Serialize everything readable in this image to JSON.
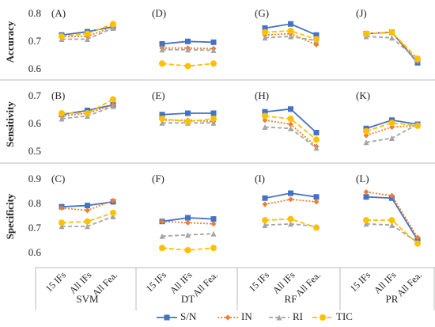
{
  "chart_data": [
    {
      "type": "line",
      "title": "(A)",
      "ylabel": "Accuracy",
      "ylim": [
        0.6,
        0.8
      ],
      "yticks": [
        0.6,
        0.7,
        0.8
      ],
      "series": [
        {
          "name": "S/N",
          "color": "#4472c4",
          "values": [
            0.725,
            0.737,
            0.755
          ]
        },
        {
          "name": "IN",
          "color": "#ed7d31",
          "values": [
            0.72,
            0.72,
            0.755
          ]
        },
        {
          "name": "RI",
          "color": "#a5a5a5",
          "values": [
            0.71,
            0.71,
            0.75
          ]
        },
        {
          "name": "TIC",
          "color": "#ffc000",
          "values": [
            0.72,
            0.73,
            0.765
          ]
        }
      ]
    },
    {
      "type": "line",
      "title": "(D)",
      "ylim": [
        0.6,
        0.8
      ],
      "series": [
        {
          "values": [
            0.693,
            0.702,
            0.699
          ]
        },
        {
          "values": [
            0.678,
            0.678,
            0.676
          ]
        },
        {
          "values": [
            0.672,
            0.672,
            0.67
          ]
        },
        {
          "values": [
            0.622,
            0.613,
            0.622
          ]
        }
      ]
    },
    {
      "type": "line",
      "title": "(G)",
      "ylim": [
        0.6,
        0.8
      ],
      "series": [
        {
          "values": [
            0.75,
            0.765,
            0.725
          ]
        },
        {
          "values": [
            0.725,
            0.73,
            0.69
          ]
        },
        {
          "values": [
            0.715,
            0.72,
            0.705
          ]
        },
        {
          "values": [
            0.735,
            0.74,
            0.71
          ]
        }
      ]
    },
    {
      "type": "line",
      "title": "(J)",
      "ylim": [
        0.6,
        0.8
      ],
      "series": [
        {
          "values": [
            0.73,
            0.735,
            0.625
          ]
        },
        {
          "values": [
            0.73,
            0.735,
            0.63
          ]
        },
        {
          "values": [
            0.72,
            0.715,
            0.635
          ]
        },
        {
          "values": [
            0.73,
            0.735,
            0.64
          ]
        }
      ]
    },
    {
      "type": "line",
      "title": "(B)",
      "ylabel": "Sensitivity",
      "ylim": [
        0.5,
        0.7
      ],
      "yticks": [
        0.5,
        0.6,
        0.7
      ],
      "series": [
        {
          "values": [
            0.635,
            0.65,
            0.67
          ]
        },
        {
          "values": [
            0.63,
            0.64,
            0.67
          ]
        },
        {
          "values": [
            0.62,
            0.63,
            0.665
          ]
        },
        {
          "values": [
            0.64,
            0.64,
            0.69
          ]
        }
      ]
    },
    {
      "type": "line",
      "title": "(E)",
      "ylim": [
        0.5,
        0.7
      ],
      "series": [
        {
          "values": [
            0.635,
            0.64,
            0.64
          ]
        },
        {
          "values": [
            0.615,
            0.615,
            0.61
          ]
        },
        {
          "values": [
            0.605,
            0.605,
            0.605
          ]
        },
        {
          "values": [
            0.62,
            0.61,
            0.62
          ]
        }
      ]
    },
    {
      "type": "line",
      "title": "(H)",
      "ylim": [
        0.5,
        0.7
      ],
      "series": [
        {
          "values": [
            0.645,
            0.655,
            0.57
          ]
        },
        {
          "values": [
            0.615,
            0.6,
            0.52
          ]
        },
        {
          "values": [
            0.59,
            0.585,
            0.515
          ]
        },
        {
          "values": [
            0.63,
            0.62,
            0.545
          ]
        }
      ]
    },
    {
      "type": "line",
      "title": "(K)",
      "ylim": [
        0.5,
        0.7
      ],
      "series": [
        {
          "values": [
            0.585,
            0.615,
            0.6
          ]
        },
        {
          "values": [
            0.56,
            0.59,
            0.595
          ]
        },
        {
          "values": [
            0.535,
            0.55,
            0.6
          ]
        },
        {
          "values": [
            0.575,
            0.605,
            0.595
          ]
        }
      ]
    },
    {
      "type": "line",
      "title": "(C)",
      "ylabel": "Specificity",
      "xlabel": "SVM",
      "categories": [
        "15 IFs",
        "All IFs",
        "All Fea."
      ],
      "ylim": [
        0.6,
        0.9
      ],
      "yticks": [
        0.6,
        0.7,
        0.8,
        0.9
      ],
      "series": [
        {
          "values": [
            0.79,
            0.795,
            0.81
          ]
        },
        {
          "values": [
            0.785,
            0.775,
            0.815
          ]
        },
        {
          "values": [
            0.71,
            0.71,
            0.75
          ]
        },
        {
          "values": [
            0.725,
            0.73,
            0.765
          ]
        }
      ]
    },
    {
      "type": "line",
      "title": "(F)",
      "xlabel": "DT",
      "categories": [
        "15 IFs",
        "All IFs",
        "All Fea."
      ],
      "ylim": [
        0.6,
        0.9
      ],
      "series": [
        {
          "values": [
            0.73,
            0.745,
            0.74
          ]
        },
        {
          "values": [
            0.73,
            0.725,
            0.72
          ]
        },
        {
          "values": [
            0.67,
            0.675,
            0.68
          ]
        },
        {
          "values": [
            0.622,
            0.613,
            0.622
          ]
        }
      ]
    },
    {
      "type": "line",
      "title": "(I)",
      "xlabel": "RF",
      "categories": [
        "15 IFs",
        "All IFs",
        "All Fea."
      ],
      "ylim": [
        0.6,
        0.9
      ],
      "series": [
        {
          "values": [
            0.825,
            0.845,
            0.83
          ]
        },
        {
          "values": [
            0.8,
            0.82,
            0.81
          ]
        },
        {
          "values": [
            0.715,
            0.72,
            0.71
          ]
        },
        {
          "values": [
            0.735,
            0.74,
            0.705
          ]
        }
      ]
    },
    {
      "type": "line",
      "title": "(L)",
      "xlabel": "PR",
      "categories": [
        "15 IFs",
        "All IFs",
        "All Fea."
      ],
      "ylim": [
        0.6,
        0.9
      ],
      "series": [
        {
          "values": [
            0.83,
            0.825,
            0.655
          ]
        },
        {
          "values": [
            0.85,
            0.835,
            0.665
          ]
        },
        {
          "values": [
            0.72,
            0.715,
            0.645
          ]
        },
        {
          "values": [
            0.735,
            0.735,
            0.64
          ]
        }
      ]
    }
  ]
}
